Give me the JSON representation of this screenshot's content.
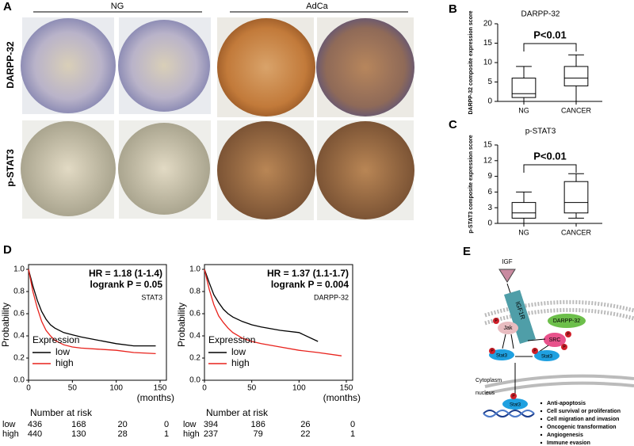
{
  "panel_labels": [
    "A",
    "B",
    "C",
    "D",
    "E"
  ],
  "panel_a": {
    "group_labels": [
      "NG",
      "AdCa"
    ],
    "row_labels": [
      "DARPP-32",
      "p-STAT3"
    ]
  },
  "chart_data": [
    {
      "type": "box",
      "title": "DARPP-32",
      "y_label": "DARPP-32 composite expression score",
      "categories": [
        "NG",
        "CANCER"
      ],
      "boxes": [
        {
          "min": 0,
          "q1": 1,
          "median": 2,
          "q3": 6,
          "max": 9
        },
        {
          "min": 0,
          "q1": 4,
          "median": 6,
          "q3": 9,
          "max": 12
        }
      ],
      "ylim": [
        0,
        20
      ],
      "yticks": [
        0,
        5,
        10,
        15,
        20
      ],
      "annotation": "P<0.01"
    },
    {
      "type": "box",
      "title": "p-STAT3",
      "y_label": "p-STAT3 composite expression score",
      "categories": [
        "NG",
        "CANCER"
      ],
      "boxes": [
        {
          "min": 0,
          "q1": 1,
          "median": 2,
          "q3": 4,
          "max": 6
        },
        {
          "min": 1,
          "q1": 2,
          "median": 4,
          "q3": 8,
          "max": 9.5
        }
      ],
      "ylim": [
        0,
        15
      ],
      "yticks": [
        0,
        3,
        6,
        9,
        12,
        15
      ],
      "annotation": "P<0.01"
    },
    {
      "type": "survival",
      "y_label": "Probability",
      "x_label": "(months)",
      "annotations": [
        "HR = 1.18 (1-1.4)",
        "logrank P = 0.05",
        "STAT3"
      ],
      "legend_title": "Expression",
      "x": [
        0,
        5,
        10,
        15,
        20,
        25,
        30,
        40,
        50,
        60,
        80,
        100,
        120,
        145
      ],
      "series": [
        {
          "name": "low",
          "color": "#000000",
          "values": [
            1,
            0.85,
            0.72,
            0.62,
            0.55,
            0.5,
            0.47,
            0.43,
            0.41,
            0.39,
            0.36,
            0.33,
            0.31,
            0.31
          ]
        },
        {
          "name": "high",
          "color": "#e8221c",
          "values": [
            1,
            0.8,
            0.65,
            0.53,
            0.45,
            0.4,
            0.36,
            0.32,
            0.3,
            0.29,
            0.28,
            0.27,
            0.25,
            0.24
          ]
        }
      ],
      "xlim": [
        0,
        150
      ],
      "xticks": [
        0,
        50,
        100,
        150
      ],
      "ylim": [
        0,
        1
      ],
      "yticks": [
        {
          "value": 0,
          "label": "0.0"
        },
        0.2,
        0.4,
        0.6,
        0.8,
        {
          "value": 1,
          "label": "1.0"
        }
      ],
      "risk_table": {
        "title": "Number at risk",
        "rows": [
          {
            "label": "low",
            "values": [
              436,
              168,
              20,
              0
            ]
          },
          {
            "label": "high",
            "values": [
              440,
              130,
              28,
              1
            ]
          }
        ]
      }
    },
    {
      "type": "survival",
      "y_label": "Probability",
      "x_label": "(months)",
      "annotations": [
        "HR = 1.37 (1.1-1.7)",
        "logrank P = 0.004",
        "DARPP-32"
      ],
      "legend_title": "Expression",
      "x": [
        0,
        5,
        10,
        15,
        20,
        25,
        30,
        40,
        50,
        60,
        80,
        100,
        120,
        145
      ],
      "series": [
        {
          "name": "low",
          "color": "#000000",
          "values": [
            1,
            0.88,
            0.77,
            0.7,
            0.64,
            0.6,
            0.57,
            0.53,
            0.5,
            0.48,
            0.45,
            0.43,
            0.35,
            null
          ]
        },
        {
          "name": "high",
          "color": "#e8221c",
          "values": [
            1,
            0.82,
            0.68,
            0.58,
            0.52,
            0.47,
            0.43,
            0.38,
            0.35,
            0.33,
            0.3,
            0.27,
            0.25,
            0.22
          ]
        }
      ],
      "xlim": [
        0,
        150
      ],
      "xticks": [
        0,
        50,
        100,
        150
      ],
      "ylim": [
        0,
        1
      ],
      "yticks": [
        {
          "value": 0,
          "label": "0.0"
        },
        0.2,
        0.4,
        0.6,
        0.8,
        {
          "value": 1,
          "label": "1.0"
        }
      ],
      "risk_table": {
        "title": "Number at risk",
        "rows": [
          {
            "label": "low",
            "values": [
              394,
              186,
              26,
              0
            ]
          },
          {
            "label": "high",
            "values": [
              237,
              79,
              22,
              1
            ]
          }
        ]
      }
    }
  ],
  "panel_e": {
    "ligand": "IGF",
    "receptor": "IGF1R",
    "proteins": [
      "DARPP-32",
      "Jak",
      "SRC"
    ],
    "stat3": [
      "Stat3",
      "Stat3",
      "Stat3"
    ],
    "phospho": [
      "P",
      "P",
      "P",
      "P",
      "P",
      "P"
    ],
    "compartments": [
      "Cytoplasm",
      "nucleus"
    ],
    "outcomes": [
      "Anti-apoptosis",
      "Cell survival or proliferation",
      "Cell migration and invasion",
      "Oncogenic transformation",
      "Angiogenesis",
      "Immune evasion"
    ]
  }
}
